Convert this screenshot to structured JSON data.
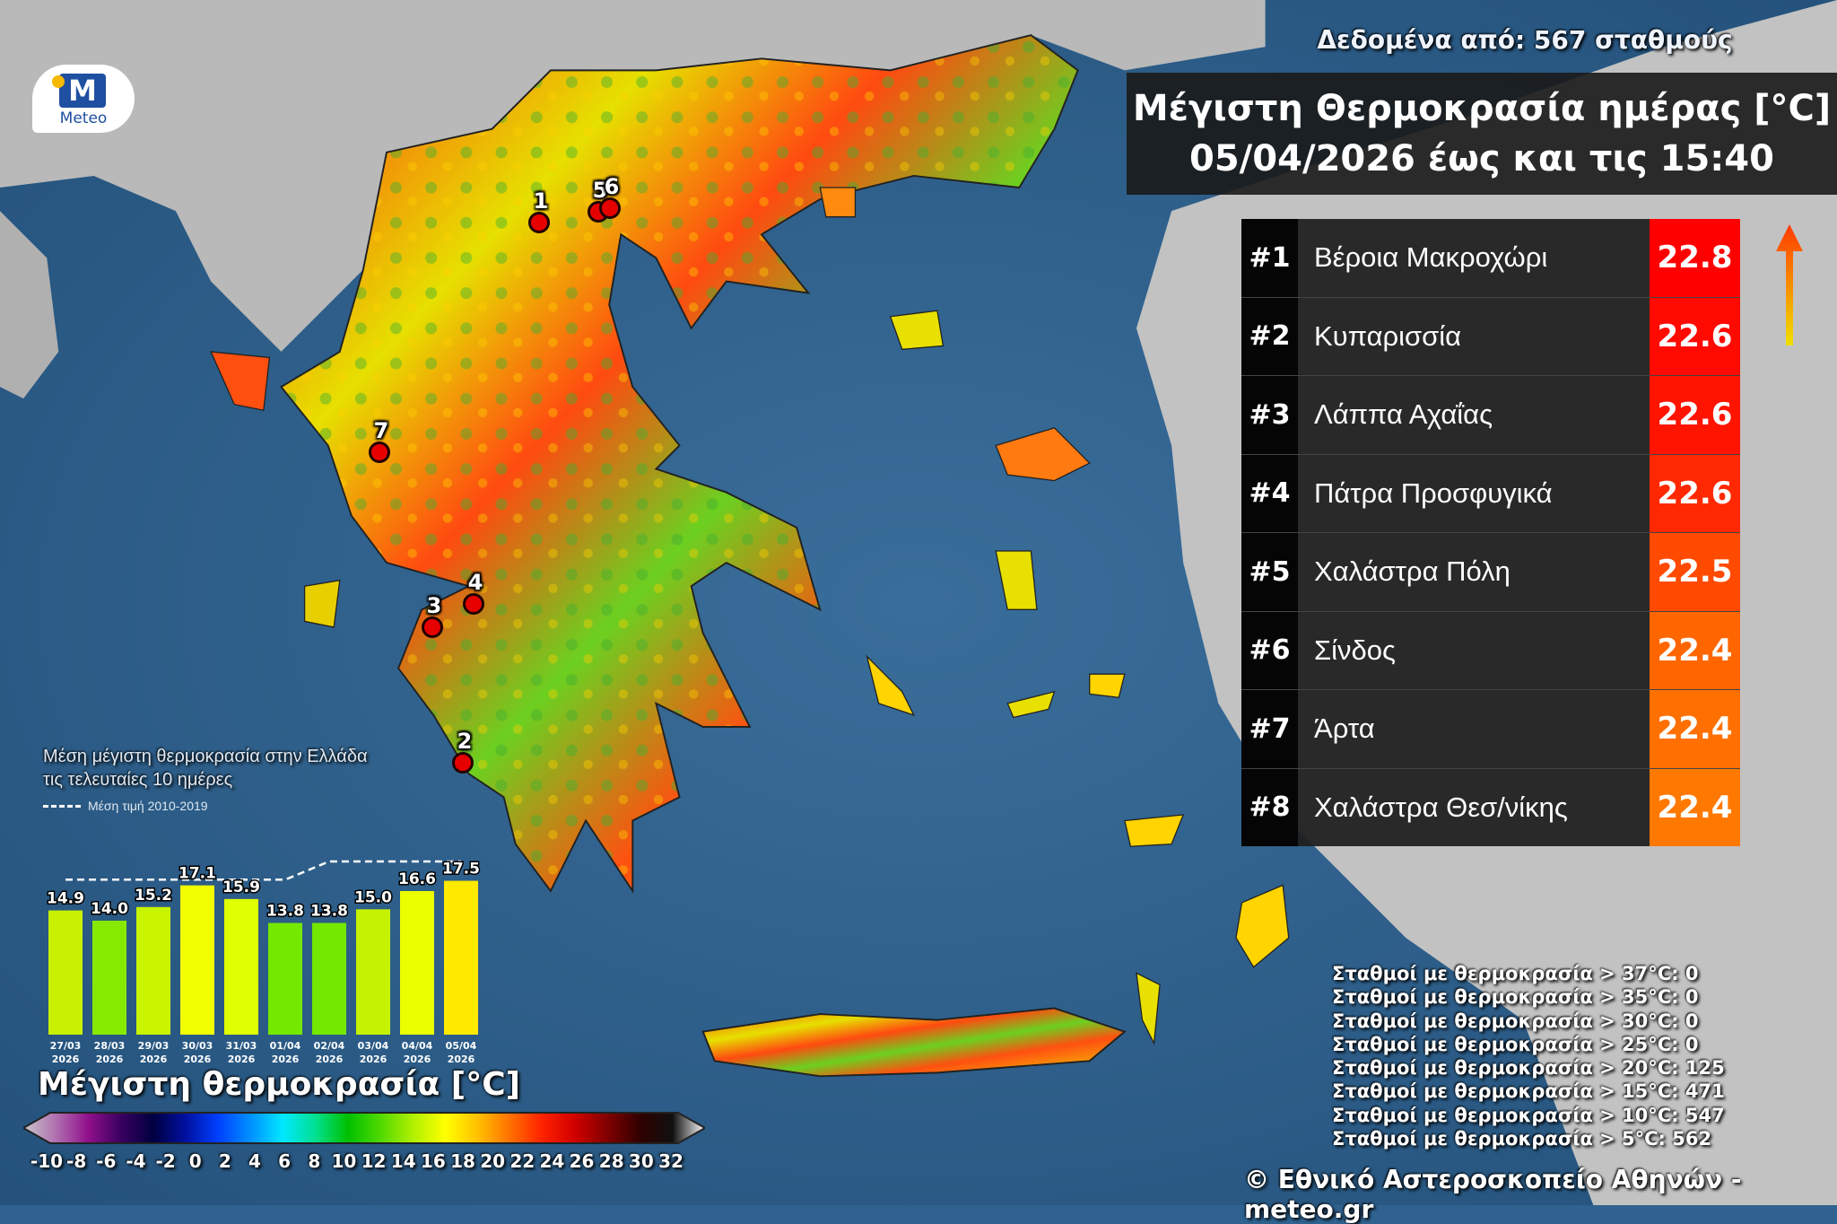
{
  "header": {
    "source_text": "Δεδομένα από: 567 σταθμούς",
    "title_line1": "Μέγιστη Θερμοκρασία ημέρας [°C]",
    "title_line2": "05/04/2026 έως και τις 15:40"
  },
  "logo": {
    "text": "Meteo",
    "letter": "M"
  },
  "ranking": [
    {
      "rank": "#1",
      "station": "Βέροια Μακροχώρι",
      "value": "22.8",
      "color": "#ff0000"
    },
    {
      "rank": "#2",
      "station": "Κυπαρισσία",
      "value": "22.6",
      "color": "#ff0a00"
    },
    {
      "rank": "#3",
      "station": "Λάππα Αχαΐας",
      "value": "22.6",
      "color": "#ff1400"
    },
    {
      "rank": "#4",
      "station": "Πάτρα Προσφυγικά",
      "value": "22.6",
      "color": "#ff2800"
    },
    {
      "rank": "#5",
      "station": "Χαλάστρα Πόλη",
      "value": "22.5",
      "color": "#ff4a00"
    },
    {
      "rank": "#6",
      "station": "Σίνδος",
      "value": "22.4",
      "color": "#ff6600"
    },
    {
      "rank": "#7",
      "station": "Άρτα",
      "value": "22.4",
      "color": "#ff7000"
    },
    {
      "rank": "#8",
      "station": "Χαλάστρα Θεσ/νίκης",
      "value": "22.4",
      "color": "#ff7800"
    }
  ],
  "markers": [
    "1",
    "2",
    "3",
    "4",
    "5",
    "6",
    "7"
  ],
  "chart_data": {
    "type": "bar",
    "title": "Μέση μέγιστη θερμοκρασία στην Ελλάδα τις τελευταίες 10 ημέρες",
    "title_line1": "Μέση μέγιστη θερμοκρασία στην Ελλάδα",
    "title_line2": "τις τελευταίες 10 ημέρες",
    "categories": [
      [
        "27/03",
        "2026"
      ],
      [
        "28/03",
        "2026"
      ],
      [
        "29/03",
        "2026"
      ],
      [
        "30/03",
        "2026"
      ],
      [
        "31/03",
        "2026"
      ],
      [
        "01/04",
        "2026"
      ],
      [
        "02/04",
        "2026"
      ],
      [
        "03/04",
        "2026"
      ],
      [
        "04/04",
        "2026"
      ],
      [
        "05/04",
        "2026"
      ]
    ],
    "values": [
      14.9,
      14.0,
      15.2,
      17.1,
      15.9,
      13.8,
      13.8,
      15.0,
      16.6,
      17.5
    ],
    "labels": [
      "14.9",
      "14.0",
      "15.2",
      "17.1",
      "15.9",
      "13.8",
      "13.8",
      "15.0",
      "16.6",
      "17.5"
    ],
    "bar_colors": [
      "#c8f000",
      "#86ea00",
      "#c8f400",
      "#f2ff00",
      "#e0ff00",
      "#74e800",
      "#74e800",
      "#c4f200",
      "#eaff00",
      "#ffea00"
    ],
    "reference_line": {
      "name": "Μέση τιμή 2010-2019",
      "values": [
        17.6,
        17.6,
        17.6,
        17.6,
        17.6,
        17.6,
        19.2,
        19.2,
        19.2,
        19.2
      ]
    },
    "ylim": [
      4,
      20
    ],
    "grid": false
  },
  "colorbar": {
    "title": "Μέγιστη θερμοκρασία [°C]",
    "ticks": [
      "-10",
      "-8",
      "-6",
      "-4",
      "-2",
      "0",
      "2",
      "4",
      "6",
      "8",
      "10",
      "12",
      "14",
      "16",
      "18",
      "20",
      "22",
      "24",
      "26",
      "28",
      "30",
      "32"
    ],
    "colors": [
      "#c8c8c8",
      "#b070b0",
      "#90108a",
      "#3a0060",
      "#000040",
      "#0010a0",
      "#0040ff",
      "#0090ff",
      "#00e8ff",
      "#00e090",
      "#00c000",
      "#50d800",
      "#b0f000",
      "#ffff00",
      "#ffc000",
      "#ff7000",
      "#ff2000",
      "#d00000",
      "#800000",
      "#300000",
      "#101010",
      "#ffffff"
    ]
  },
  "stats": [
    "Σταθμοί με θερμοκρασία > 37°C: 0",
    "Σταθμοί με θερμοκρασία > 35°C: 0",
    "Σταθμοί με θερμοκρασία > 30°C: 0",
    "Σταθμοί με θερμοκρασία > 25°C: 0",
    "Σταθμοί με θερμοκρασία > 20°C: 125",
    "Σταθμοί με θερμοκρασία > 15°C: 471",
    "Σταθμοί με θερμοκρασία > 10°C: 547",
    "Σταθμοί με θερμοκρασία > 5°C: 562"
  ],
  "copyright": "© Εθνικό Αστεροσκοπείο Αθηνών - meteo.gr",
  "colors": {
    "sea": "#2f628f",
    "land_outside": "#b8b8b8",
    "title_box": "#191919"
  }
}
